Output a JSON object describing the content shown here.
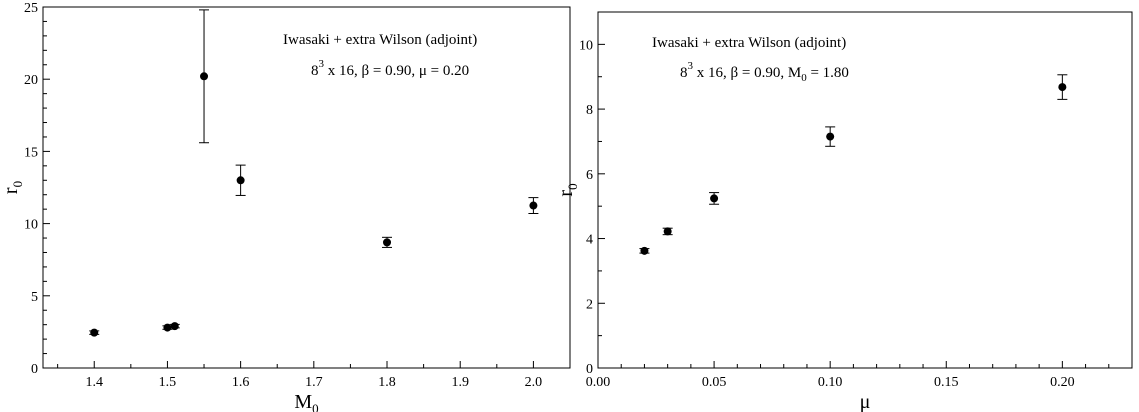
{
  "chart_data": [
    {
      "type": "scatter",
      "xlabel": "M",
      "xlabel_sub": "0",
      "ylabel": "r",
      "ylabel_sub": "0",
      "xlim": [
        1.33,
        2.05
      ],
      "ylim": [
        0,
        25
      ],
      "xticks": [
        "1.4",
        "1.5",
        "1.6",
        "1.7",
        "1.8",
        "1.9",
        "2.0"
      ],
      "yticks": [
        "0",
        "5",
        "10",
        "15",
        "20",
        "25"
      ],
      "annotation_line1": "Iwasaki + extra Wilson (adjoint)",
      "annotation_line2": {
        "base": "8",
        "sup": "3",
        "rest": " x 16, β = 0.90, μ = 0.20",
        "sub": "",
        "tail": ""
      },
      "points": [
        {
          "x": 1.4,
          "y": 2.45,
          "err": 0.12
        },
        {
          "x": 1.5,
          "y": 2.8,
          "err": 0.12
        },
        {
          "x": 1.51,
          "y": 2.9,
          "err": 0.12
        },
        {
          "x": 1.55,
          "y": 20.2,
          "err": 4.6
        },
        {
          "x": 1.6,
          "y": 13.0,
          "err": 1.05
        },
        {
          "x": 1.8,
          "y": 8.7,
          "err": 0.35
        },
        {
          "x": 2.0,
          "y": 11.25,
          "err": 0.55
        }
      ]
    },
    {
      "type": "scatter",
      "xlabel": "μ",
      "xlabel_sub": "",
      "ylabel": "r",
      "ylabel_sub": "0",
      "xlim": [
        0.0,
        0.23
      ],
      "ylim": [
        0,
        11
      ],
      "xticks": [
        "0.00",
        "0.05",
        "0.10",
        "0.15",
        "0.20"
      ],
      "yticks": [
        "0",
        "2",
        "4",
        "6",
        "8",
        "10"
      ],
      "annotation_line1": "Iwasaki + extra Wilson (adjoint)",
      "annotation_line2": {
        "base": "8",
        "sup": "3",
        "rest": " x 16, β = 0.90, M",
        "sub": "0",
        "tail": " = 1.80"
      },
      "points": [
        {
          "x": 0.02,
          "y": 3.62,
          "err": 0.07
        },
        {
          "x": 0.03,
          "y": 4.22,
          "err": 0.1
        },
        {
          "x": 0.05,
          "y": 5.24,
          "err": 0.18
        },
        {
          "x": 0.1,
          "y": 7.15,
          "err": 0.3
        },
        {
          "x": 0.2,
          "y": 8.68,
          "err": 0.38
        }
      ]
    }
  ]
}
